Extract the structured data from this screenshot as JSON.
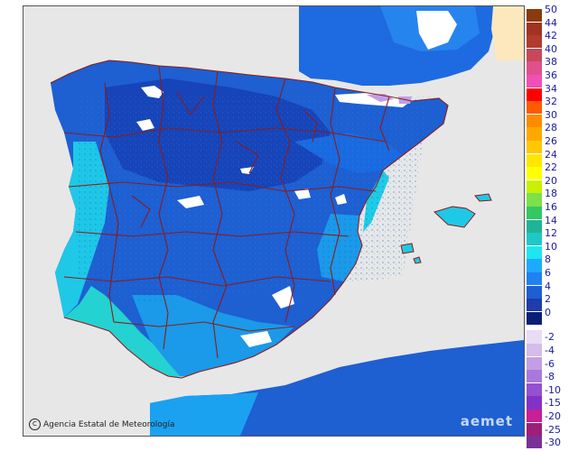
{
  "map": {
    "credit_symbol": "C",
    "credit_text": "Agencia Estatal de Meteorología",
    "brand_text": "aemet"
  },
  "legend": {
    "positive": [
      {
        "value": "50",
        "color": "#8a3a0c"
      },
      {
        "value": "44",
        "color": "#a03420"
      },
      {
        "value": "42",
        "color": "#b33a2e"
      },
      {
        "value": "40",
        "color": "#c8485a"
      },
      {
        "value": "38",
        "color": "#e0508a"
      },
      {
        "value": "36",
        "color": "#f050b4"
      },
      {
        "value": "34",
        "color": "#ff0000"
      },
      {
        "value": "32",
        "color": "#ff5a00"
      },
      {
        "value": "30",
        "color": "#ff8c00"
      },
      {
        "value": "28",
        "color": "#ffa800"
      },
      {
        "value": "26",
        "color": "#ffc800"
      },
      {
        "value": "24",
        "color": "#ffe600"
      },
      {
        "value": "22",
        "color": "#ffff00"
      },
      {
        "value": "20",
        "color": "#c8f000"
      },
      {
        "value": "18",
        "color": "#7ee04a"
      },
      {
        "value": "16",
        "color": "#32c864"
      },
      {
        "value": "14",
        "color": "#20b496"
      },
      {
        "value": "12",
        "color": "#1ec8c8"
      },
      {
        "value": "10",
        "color": "#1ee6f0"
      },
      {
        "value": "8",
        "color": "#1eaaff"
      },
      {
        "value": "6",
        "color": "#1e82f0"
      },
      {
        "value": "4",
        "color": "#1e5fd2"
      },
      {
        "value": "2",
        "color": "#1e3caa"
      },
      {
        "value": "0",
        "color": "#0a1e78"
      }
    ],
    "negative": [
      {
        "value": "-2",
        "color": "#e8dcf5"
      },
      {
        "value": "-4",
        "color": "#d4bcec"
      },
      {
        "value": "-6",
        "color": "#c39ee4"
      },
      {
        "value": "-8",
        "color": "#aa78dc"
      },
      {
        "value": "-10",
        "color": "#9650d2"
      },
      {
        "value": "-15",
        "color": "#8232c8"
      },
      {
        "value": "-20",
        "color": "#c81e96"
      },
      {
        "value": "-25",
        "color": "#a01e78"
      },
      {
        "value": "-30",
        "color": "#783296"
      }
    ]
  }
}
